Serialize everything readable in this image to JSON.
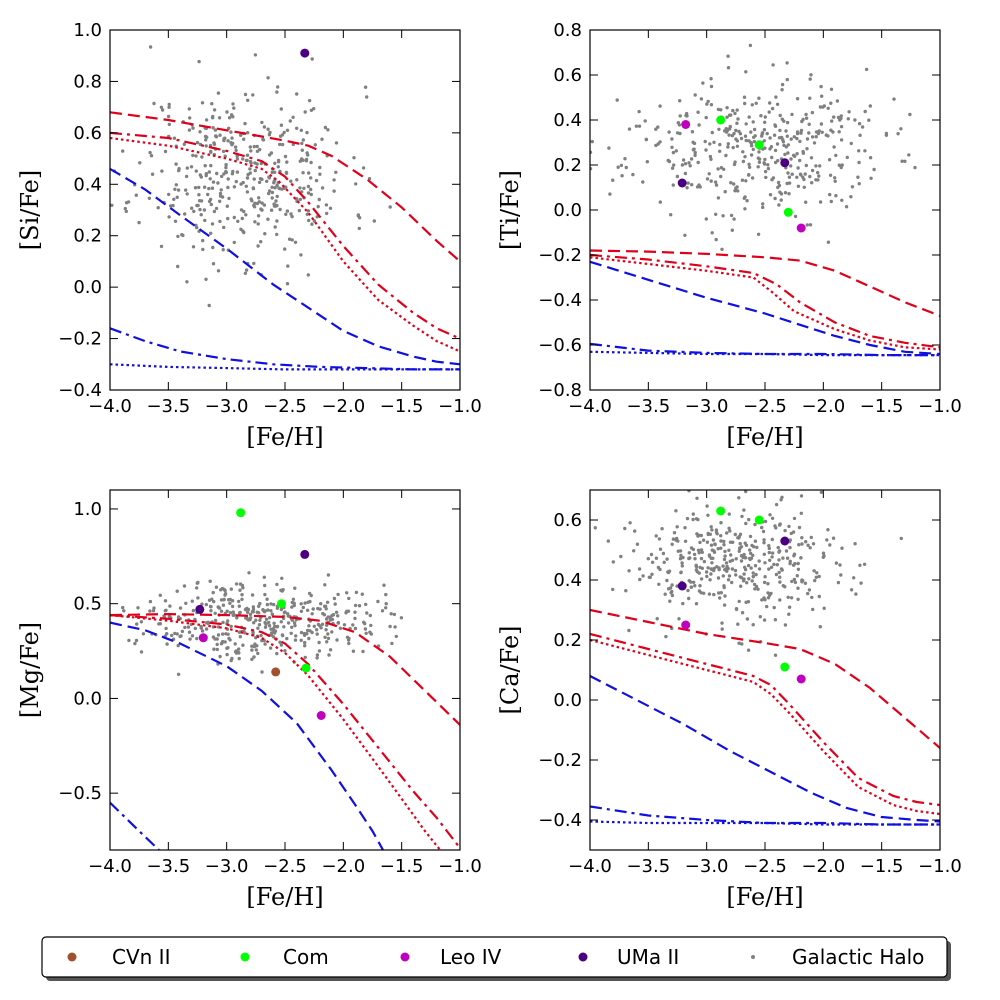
{
  "colors": {
    "CVn II": "#a0522d",
    "Com": "#00ff00",
    "Leo IV": "#c000c0",
    "UMa II": "#4b0082",
    "Galactic Halo": "#808080",
    "model_red": "#e0001a",
    "model_blue": "#1010e0"
  },
  "legend": {
    "entries": [
      "CVn II",
      "Com",
      "Leo IV",
      "UMa II",
      "Galactic Halo"
    ]
  },
  "chart_data": [
    {
      "type": "scatter",
      "panel": "top-left",
      "xlabel": "[Fe/H]",
      "ylabel": "[Si/Fe]",
      "xlim": [
        -4.0,
        -1.0
      ],
      "ylim": [
        -0.4,
        1.0
      ],
      "xticks": [
        -4.0,
        -3.5,
        -3.0,
        -2.5,
        -2.0,
        -1.5,
        -1.0
      ],
      "xtick_labels": [
        "−4.0",
        "−3.5",
        "−3.0",
        "−2.5",
        "−2.0",
        "−1.5",
        "−1.0"
      ],
      "yticks": [
        -0.4,
        -0.2,
        0.0,
        0.2,
        0.4,
        0.6,
        0.8,
        1.0
      ],
      "ytick_labels": [
        "−0.4",
        "−0.2",
        "0.0",
        "0.2",
        "0.4",
        "0.6",
        "0.8",
        "1.0"
      ],
      "halo": {
        "n": 420,
        "x_center": -2.85,
        "x_sd": 0.45,
        "y_center": 0.44,
        "y_sd": 0.17,
        "seed": 11
      },
      "points": [
        {
          "name": "UMa II",
          "x": -2.33,
          "y": 0.91
        }
      ],
      "models": [
        {
          "color": "red",
          "style": "dashed",
          "x": [
            -4.0,
            -3.5,
            -3.0,
            -2.5,
            -2.3,
            -2.1,
            -1.8,
            -1.5,
            -1.2,
            -1.0
          ],
          "y": [
            0.68,
            0.65,
            0.61,
            0.57,
            0.55,
            0.51,
            0.42,
            0.31,
            0.18,
            0.1
          ]
        },
        {
          "color": "red",
          "style": "dashdot",
          "x": [
            -4.0,
            -3.5,
            -3.0,
            -2.7,
            -2.5,
            -2.3,
            -2.0,
            -1.7,
            -1.4,
            -1.2,
            -1.0
          ],
          "y": [
            0.6,
            0.58,
            0.53,
            0.49,
            0.43,
            0.33,
            0.16,
            0.01,
            -0.1,
            -0.16,
            -0.2
          ]
        },
        {
          "color": "red",
          "style": "dotted",
          "x": [
            -4.0,
            -3.5,
            -3.0,
            -2.7,
            -2.55,
            -2.3,
            -2.0,
            -1.7,
            -1.4,
            -1.2,
            -1.0
          ],
          "y": [
            0.58,
            0.55,
            0.5,
            0.46,
            0.41,
            0.29,
            0.1,
            -0.05,
            -0.15,
            -0.21,
            -0.25
          ]
        },
        {
          "color": "blue",
          "style": "dashed",
          "x": [
            -4.0,
            -3.7,
            -3.4,
            -3.0,
            -2.6,
            -2.3,
            -2.0,
            -1.7,
            -1.4,
            -1.2,
            -1.0
          ],
          "y": [
            0.46,
            0.38,
            0.28,
            0.15,
            0.01,
            -0.08,
            -0.17,
            -0.23,
            -0.27,
            -0.29,
            -0.3
          ]
        },
        {
          "color": "blue",
          "style": "dashdot",
          "x": [
            -4.0,
            -3.7,
            -3.4,
            -3.0,
            -2.6,
            -2.2,
            -1.8,
            -1.4,
            -1.0
          ],
          "y": [
            -0.16,
            -0.21,
            -0.25,
            -0.28,
            -0.3,
            -0.31,
            -0.315,
            -0.32,
            -0.32
          ]
        },
        {
          "color": "blue",
          "style": "dotted",
          "x": [
            -4.0,
            -3.5,
            -3.0,
            -2.5,
            -2.0,
            -1.5,
            -1.0
          ],
          "y": [
            -0.3,
            -0.31,
            -0.315,
            -0.32,
            -0.32,
            -0.32,
            -0.32
          ]
        }
      ]
    },
    {
      "type": "scatter",
      "panel": "top-right",
      "xlabel": "[Fe/H]",
      "ylabel": "[Ti/Fe]",
      "xlim": [
        -4.0,
        -1.0
      ],
      "ylim": [
        -0.8,
        0.8
      ],
      "xticks": [
        -4.0,
        -3.5,
        -3.0,
        -2.5,
        -2.0,
        -1.5,
        -1.0
      ],
      "xtick_labels": [
        "−4.0",
        "−3.5",
        "−3.0",
        "−2.5",
        "−2.0",
        "−1.5",
        "−1.0"
      ],
      "yticks": [
        -0.8,
        -0.6,
        -0.4,
        -0.2,
        0.0,
        0.2,
        0.4,
        0.6,
        0.8
      ],
      "ytick_labels": [
        "−0.8",
        "−0.6",
        "−0.4",
        "−0.2",
        "0.0",
        "0.2",
        "0.4",
        "0.6",
        "0.8"
      ],
      "halo": {
        "n": 420,
        "x_center": -2.6,
        "x_sd": 0.55,
        "y_center": 0.27,
        "y_sd": 0.15,
        "seed": 23
      },
      "points": [
        {
          "name": "Leo IV",
          "x": -3.18,
          "y": 0.38
        },
        {
          "name": "Com",
          "x": -2.88,
          "y": 0.4
        },
        {
          "name": "Com",
          "x": -2.55,
          "y": 0.29
        },
        {
          "name": "UMa II",
          "x": -2.33,
          "y": 0.21
        },
        {
          "name": "UMa II",
          "x": -3.21,
          "y": 0.12
        },
        {
          "name": "Com",
          "x": -2.3,
          "y": -0.01
        },
        {
          "name": "Leo IV",
          "x": -2.19,
          "y": -0.08
        }
      ],
      "models": [
        {
          "color": "red",
          "style": "dashed",
          "x": [
            -4.0,
            -3.5,
            -3.0,
            -2.5,
            -2.2,
            -1.9,
            -1.6,
            -1.3,
            -1.0
          ],
          "y": [
            -0.18,
            -0.185,
            -0.195,
            -0.21,
            -0.225,
            -0.27,
            -0.34,
            -0.41,
            -0.47
          ]
        },
        {
          "color": "red",
          "style": "dashdot",
          "x": [
            -4.0,
            -3.5,
            -3.0,
            -2.6,
            -2.4,
            -2.2,
            -1.9,
            -1.6,
            -1.3,
            -1.0
          ],
          "y": [
            -0.2,
            -0.22,
            -0.25,
            -0.28,
            -0.33,
            -0.41,
            -0.5,
            -0.56,
            -0.59,
            -0.61
          ]
        },
        {
          "color": "red",
          "style": "dotted",
          "x": [
            -4.0,
            -3.5,
            -3.0,
            -2.6,
            -2.45,
            -2.25,
            -1.9,
            -1.6,
            -1.3,
            -1.0
          ],
          "y": [
            -0.21,
            -0.24,
            -0.27,
            -0.3,
            -0.36,
            -0.45,
            -0.53,
            -0.58,
            -0.61,
            -0.62
          ]
        },
        {
          "color": "blue",
          "style": "dashed",
          "x": [
            -4.0,
            -3.5,
            -3.0,
            -2.5,
            -2.2,
            -1.9,
            -1.6,
            -1.3,
            -1.0
          ],
          "y": [
            -0.23,
            -0.31,
            -0.39,
            -0.46,
            -0.51,
            -0.56,
            -0.6,
            -0.63,
            -0.64
          ]
        },
        {
          "color": "blue",
          "style": "dashdot",
          "x": [
            -4.0,
            -3.5,
            -3.0,
            -2.5,
            -2.0,
            -1.5,
            -1.0
          ],
          "y": [
            -0.595,
            -0.625,
            -0.635,
            -0.64,
            -0.64,
            -0.645,
            -0.645
          ]
        },
        {
          "color": "blue",
          "style": "dotted",
          "x": [
            -4.0,
            -3.5,
            -3.0,
            -2.5,
            -2.0,
            -1.5,
            -1.0
          ],
          "y": [
            -0.63,
            -0.635,
            -0.64,
            -0.64,
            -0.645,
            -0.645,
            -0.645
          ]
        }
      ]
    },
    {
      "type": "scatter",
      "panel": "bottom-left",
      "xlabel": "[Fe/H]",
      "ylabel": "[Mg/Fe]",
      "xlim": [
        -4.0,
        -1.0
      ],
      "ylim": [
        -0.8,
        1.1
      ],
      "xticks": [
        -4.0,
        -3.5,
        -3.0,
        -2.5,
        -2.0,
        -1.5,
        -1.0
      ],
      "xtick_labels": [
        "−4.0",
        "−3.5",
        "−3.0",
        "−2.5",
        "−2.0",
        "−1.5",
        "−1.0"
      ],
      "yticks": [
        -0.5,
        0.0,
        0.5,
        1.0
      ],
      "ytick_labels": [
        "−0.5",
        "0.0",
        "0.5",
        "1.0"
      ],
      "halo": {
        "n": 420,
        "x_center": -2.7,
        "x_sd": 0.5,
        "y_center": 0.42,
        "y_sd": 0.1,
        "seed": 37
      },
      "points": [
        {
          "name": "Com",
          "x": -2.88,
          "y": 0.98
        },
        {
          "name": "UMa II",
          "x": -2.33,
          "y": 0.76
        },
        {
          "name": "Com",
          "x": -2.53,
          "y": 0.5
        },
        {
          "name": "UMa II",
          "x": -3.23,
          "y": 0.47
        },
        {
          "name": "Leo IV",
          "x": -3.2,
          "y": 0.32
        },
        {
          "name": "Com",
          "x": -2.32,
          "y": 0.16
        },
        {
          "name": "CVn II",
          "x": -2.58,
          "y": 0.14
        },
        {
          "name": "Leo IV",
          "x": -2.19,
          "y": -0.09
        }
      ],
      "models": [
        {
          "color": "red",
          "style": "dashed",
          "x": [
            -4.0,
            -3.5,
            -3.0,
            -2.5,
            -2.2,
            -1.9,
            -1.6,
            -1.3,
            -1.0
          ],
          "y": [
            0.44,
            0.445,
            0.44,
            0.43,
            0.41,
            0.35,
            0.22,
            0.04,
            -0.14
          ]
        },
        {
          "color": "red",
          "style": "dashdot",
          "x": [
            -4.0,
            -3.5,
            -3.0,
            -2.7,
            -2.5,
            -2.3,
            -2.0,
            -1.7,
            -1.4,
            -1.2,
            -1.0
          ],
          "y": [
            0.44,
            0.42,
            0.39,
            0.35,
            0.29,
            0.18,
            -0.03,
            -0.26,
            -0.49,
            -0.63,
            -0.79
          ]
        },
        {
          "color": "red",
          "style": "dotted",
          "x": [
            -4.0,
            -3.5,
            -3.0,
            -2.7,
            -2.5,
            -2.3,
            -2.0,
            -1.7,
            -1.5,
            -1.3,
            -1.17
          ],
          "y": [
            0.44,
            0.41,
            0.37,
            0.32,
            0.24,
            0.12,
            -0.11,
            -0.36,
            -0.53,
            -0.7,
            -0.8
          ]
        },
        {
          "color": "blue",
          "style": "dashed",
          "x": [
            -4.0,
            -3.7,
            -3.4,
            -3.0,
            -2.7,
            -2.4,
            -2.1,
            -1.9,
            -1.75,
            -1.66
          ],
          "y": [
            0.4,
            0.36,
            0.29,
            0.17,
            0.04,
            -0.13,
            -0.38,
            -0.56,
            -0.7,
            -0.8
          ]
        },
        {
          "color": "blue",
          "style": "dashdot",
          "x": [
            -4.0,
            -3.85,
            -3.7,
            -3.58
          ],
          "y": [
            -0.55,
            -0.64,
            -0.73,
            -0.8
          ]
        }
      ]
    },
    {
      "type": "scatter",
      "panel": "bottom-right",
      "xlabel": "[Fe/H]",
      "ylabel": "[Ca/Fe]",
      "xlim": [
        -4.0,
        -1.0
      ],
      "ylim": [
        -0.5,
        0.7
      ],
      "xticks": [
        -4.0,
        -3.5,
        -3.0,
        -2.5,
        -2.0,
        -1.5,
        -1.0
      ],
      "xtick_labels": [
        "−4.0",
        "−3.5",
        "−3.0",
        "−2.5",
        "−2.0",
        "−1.5",
        "−1.0"
      ],
      "yticks": [
        -0.4,
        -0.2,
        0.0,
        0.2,
        0.4,
        0.6
      ],
      "ytick_labels": [
        "−0.4",
        "−0.2",
        "0.0",
        "0.2",
        "0.4",
        "0.6"
      ],
      "halo": {
        "n": 420,
        "x_center": -2.7,
        "x_sd": 0.5,
        "y_center": 0.45,
        "y_sd": 0.1,
        "seed": 53
      },
      "points": [
        {
          "name": "Com",
          "x": -2.88,
          "y": 0.63
        },
        {
          "name": "Com",
          "x": -2.55,
          "y": 0.6
        },
        {
          "name": "UMa II",
          "x": -2.33,
          "y": 0.53
        },
        {
          "name": "UMa II",
          "x": -3.21,
          "y": 0.38
        },
        {
          "name": "Leo IV",
          "x": -3.18,
          "y": 0.25
        },
        {
          "name": "Com",
          "x": -2.33,
          "y": 0.11
        },
        {
          "name": "Leo IV",
          "x": -2.19,
          "y": 0.07
        }
      ],
      "models": [
        {
          "color": "red",
          "style": "dashed",
          "x": [
            -4.0,
            -3.5,
            -3.0,
            -2.5,
            -2.2,
            -1.9,
            -1.6,
            -1.3,
            -1.0
          ],
          "y": [
            0.3,
            0.26,
            0.22,
            0.19,
            0.17,
            0.12,
            0.04,
            -0.06,
            -0.16
          ]
        },
        {
          "color": "red",
          "style": "dashdot",
          "x": [
            -4.0,
            -3.5,
            -3.0,
            -2.6,
            -2.45,
            -2.3,
            -2.0,
            -1.7,
            -1.4,
            -1.2,
            -1.0
          ],
          "y": [
            0.22,
            0.17,
            0.12,
            0.08,
            0.05,
            -0.01,
            -0.14,
            -0.26,
            -0.32,
            -0.34,
            -0.35
          ]
        },
        {
          "color": "red",
          "style": "dotted",
          "x": [
            -4.0,
            -3.5,
            -3.0,
            -2.6,
            -2.45,
            -2.3,
            -2.0,
            -1.7,
            -1.4,
            -1.2,
            -1.0
          ],
          "y": [
            0.2,
            0.15,
            0.1,
            0.06,
            0.02,
            -0.04,
            -0.17,
            -0.29,
            -0.35,
            -0.37,
            -0.38
          ]
        },
        {
          "color": "blue",
          "style": "dashed",
          "x": [
            -4.0,
            -3.6,
            -3.2,
            -2.8,
            -2.4,
            -2.1,
            -1.8,
            -1.5,
            -1.2,
            -1.0
          ],
          "y": [
            0.08,
            0.0,
            -0.08,
            -0.17,
            -0.25,
            -0.31,
            -0.36,
            -0.39,
            -0.4,
            -0.405
          ]
        },
        {
          "color": "blue",
          "style": "dashdot",
          "x": [
            -4.0,
            -3.5,
            -3.0,
            -2.5,
            -2.0,
            -1.5,
            -1.0
          ],
          "y": [
            -0.355,
            -0.385,
            -0.4,
            -0.41,
            -0.41,
            -0.415,
            -0.415
          ]
        },
        {
          "color": "blue",
          "style": "dotted",
          "x": [
            -4.0,
            -3.5,
            -3.0,
            -2.5,
            -2.0,
            -1.5,
            -1.0
          ],
          "y": [
            -0.405,
            -0.41,
            -0.41,
            -0.41,
            -0.415,
            -0.415,
            -0.415
          ]
        }
      ]
    }
  ]
}
